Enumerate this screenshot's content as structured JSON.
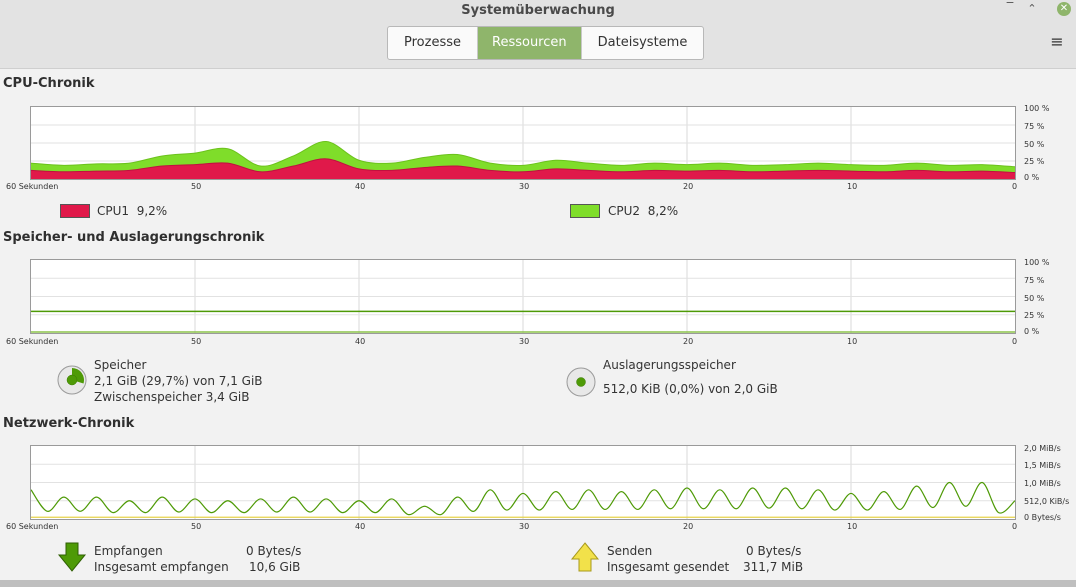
{
  "window": {
    "title": "Systemüberwachung",
    "minimize": "‾",
    "maximize": "⌃",
    "close": "✕"
  },
  "tabs": [
    {
      "label": "Prozesse",
      "active": false
    },
    {
      "label": "Ressourcen",
      "active": true
    },
    {
      "label": "Dateisysteme",
      "active": false
    }
  ],
  "menu_icon": "≡",
  "colors": {
    "accent": "#8fb56b",
    "cpu1": "#e0194a",
    "cpu2": "#7fdd2a",
    "memory": "#4e9a06",
    "network_received": "#4e9a06",
    "network_sent": "#e6d34a"
  },
  "x_axis": [
    "60 Sekunden",
    "50",
    "40",
    "30",
    "20",
    "10",
    "0"
  ],
  "cpu": {
    "title": "CPU-Chronik",
    "y_axis": [
      "100 %",
      "75 %",
      "50 %",
      "25 %",
      "0 %"
    ],
    "cpu1": {
      "label": "CPU1",
      "value": "9,2%"
    },
    "cpu2": {
      "label": "CPU2",
      "value": "8,2%"
    }
  },
  "memory": {
    "title": "Speicher- und Auslagerungschronik",
    "y_axis": [
      "100 %",
      "75 %",
      "50 %",
      "25 %",
      "0 %"
    ],
    "ram": {
      "label": "Speicher",
      "detail": "2,1 GiB (29,7%) von 7,1 GiB",
      "cache": "Zwischenspeicher 3,4 GiB",
      "fraction": 0.297
    },
    "swap": {
      "label": "Auslagerungsspeicher",
      "detail": "512,0 KiB (0,0%) von 2,0 GiB",
      "fraction": 0.0
    }
  },
  "network": {
    "title": "Netzwerk-Chronik",
    "y_axis": [
      "2,0 MiB/s",
      "1,5 MiB/s",
      "1,0 MiB/s",
      "512,0 KiB/s",
      "0 Bytes/s"
    ],
    "received": {
      "label": "Empfangen",
      "rate": "0 Bytes/s",
      "total_label": "Insgesamt empfangen",
      "total": "10,6 GiB"
    },
    "sent": {
      "label": "Senden",
      "rate": "0 Bytes/s",
      "total_label": "Insgesamt gesendet",
      "total": "311,7 MiB"
    }
  },
  "chart_data": [
    {
      "type": "area",
      "title": "CPU-Chronik",
      "x": [
        60,
        58,
        56,
        54,
        52,
        50,
        48,
        46,
        44,
        42,
        40,
        38,
        36,
        34,
        32,
        30,
        28,
        26,
        24,
        22,
        20,
        18,
        16,
        14,
        12,
        10,
        8,
        6,
        4,
        2,
        0
      ],
      "xlim": [
        60,
        0
      ],
      "ylim": [
        0,
        100
      ],
      "series": [
        {
          "name": "CPU1",
          "values": [
            12,
            10,
            11,
            12,
            18,
            20,
            22,
            10,
            18,
            28,
            14,
            12,
            16,
            18,
            12,
            10,
            14,
            12,
            10,
            12,
            11,
            12,
            10,
            11,
            12,
            11,
            10,
            12,
            10,
            11,
            9
          ]
        },
        {
          "name": "CPU2",
          "values": [
            10,
            9,
            10,
            10,
            14,
            16,
            20,
            8,
            14,
            24,
            12,
            10,
            14,
            16,
            10,
            9,
            12,
            10,
            9,
            10,
            9,
            10,
            9,
            9,
            10,
            9,
            9,
            10,
            9,
            9,
            8
          ]
        }
      ]
    },
    {
      "type": "line",
      "title": "Speicher- und Auslagerungschronik",
      "x": [
        60,
        0
      ],
      "xlim": [
        60,
        0
      ],
      "ylim": [
        0,
        100
      ],
      "series": [
        {
          "name": "Speicher",
          "values": [
            29.7,
            29.7
          ]
        },
        {
          "name": "Auslagerungsspeicher",
          "values": [
            0.0,
            0.0
          ]
        }
      ]
    },
    {
      "type": "line",
      "title": "Netzwerk-Chronik",
      "x": [
        60,
        58,
        56,
        54,
        52,
        50,
        48,
        46,
        44,
        42,
        40,
        38,
        36,
        34,
        32,
        30,
        28,
        26,
        24,
        22,
        20,
        18,
        16,
        14,
        12,
        10,
        8,
        6,
        4,
        2,
        0
      ],
      "xlim": [
        60,
        0
      ],
      "ylim_mib_s": [
        0,
        2.0
      ],
      "series": [
        {
          "name": "Empfangen",
          "unit": "MiB/s",
          "peak_values": [
            0.8,
            0.6,
            0.6,
            0.5,
            0.6,
            0.55,
            0.5,
            0.55,
            0.6,
            0.55,
            0.5,
            0.55,
            0.35,
            0.6,
            0.8,
            0.7,
            0.75,
            0.8,
            0.75,
            0.8,
            0.85,
            0.8,
            0.85,
            0.85,
            0.8,
            0.7,
            0.75,
            0.9,
            1.0,
            1.0,
            0.5
          ]
        },
        {
          "name": "Senden",
          "unit": "MiB/s",
          "peak_values": [
            0.02,
            0.02,
            0.02,
            0.02,
            0.02,
            0.02,
            0.02,
            0.02,
            0.02,
            0.02,
            0.02,
            0.02,
            0.02,
            0.02,
            0.02,
            0.02,
            0.02,
            0.02,
            0.02,
            0.02,
            0.02,
            0.02,
            0.02,
            0.02,
            0.02,
            0.02,
            0.02,
            0.02,
            0.02,
            0.02,
            0.02
          ]
        }
      ]
    }
  ]
}
